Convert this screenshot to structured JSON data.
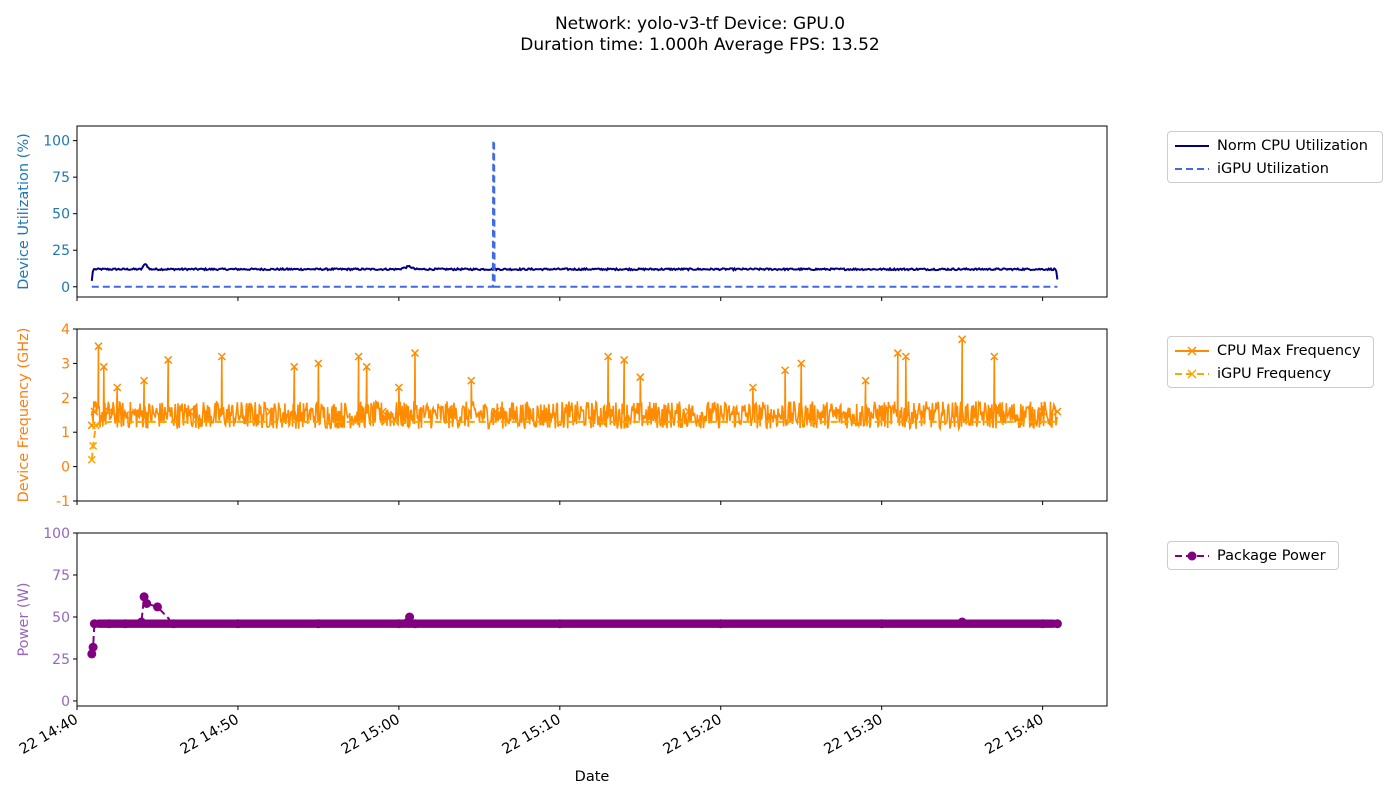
{
  "title_line1": "Network: yolo-v3-tf Device: GPU.0",
  "title_line2": "Duration time: 1.000h Average FPS: 13.52",
  "colors": {
    "cpu_util": "#000080",
    "igpu_util": "#4169e1",
    "cpu_freq": "#ff8c00",
    "igpu_freq": "#ffa500",
    "power": "#800080",
    "label_util": "#1f77b4",
    "label_freq": "#ff7f0e",
    "label_power": "#9467bd"
  },
  "legend_util": [
    "Norm CPU Utilization",
    "iGPU Utilization"
  ],
  "legend_freq": [
    "CPU Max Frequency",
    "iGPU Frequency"
  ],
  "legend_power": [
    "Package Power"
  ],
  "chart_data": [
    {
      "type": "line",
      "ylabel": "Device Utilization (%)",
      "ylim": [
        -7,
        110
      ],
      "yticks": [
        0,
        25,
        50,
        75,
        100
      ],
      "xlim": [
        "14:40",
        "15:44"
      ],
      "series": [
        {
          "name": "Norm CPU Utilization",
          "x": [
            "14:40:55",
            "14:41:00",
            "14:42:00",
            "14:43:00",
            "14:44:00",
            "14:44:15",
            "14:44:30",
            "14:45:00",
            "14:46:00",
            "14:50:00",
            "14:55:00",
            "15:00:00",
            "15:00:40",
            "15:01:00",
            "15:05:00",
            "15:05:50",
            "15:06:00",
            "15:10:00",
            "15:20:00",
            "15:30:00",
            "15:40:00",
            "15:40:50",
            "15:40:55"
          ],
          "values": [
            4,
            12,
            12,
            12,
            12,
            16,
            12,
            12,
            12,
            12,
            12,
            12,
            14,
            12,
            12,
            12,
            12,
            12,
            12,
            12,
            12,
            12,
            5
          ]
        },
        {
          "name": "iGPU Utilization",
          "x": [
            "14:40:55",
            "15:05:50",
            "15:05:52",
            "15:05:55",
            "15:05:57",
            "15:40:55"
          ],
          "values": [
            0,
            0,
            100,
            100,
            0,
            0
          ]
        }
      ]
    },
    {
      "type": "line",
      "ylabel": "Device Frequency (GHz)",
      "ylim": [
        -1,
        4
      ],
      "yticks": [
        -1,
        0,
        1,
        2,
        3,
        4
      ],
      "xlim": [
        "14:40",
        "15:44"
      ],
      "series": [
        {
          "name": "CPU Max Frequency",
          "x": [
            "14:40:55",
            "14:41:05",
            "14:41:20",
            "14:41:40",
            "14:42:00",
            "14:42:30",
            "14:43:00",
            "14:44:10",
            "14:45:40",
            "14:47:00",
            "14:49:00",
            "14:52:00",
            "14:53:30",
            "14:55:00",
            "14:57:30",
            "14:58:00",
            "14:59:00",
            "15:00:00",
            "15:01:00",
            "15:04:30",
            "15:06:00",
            "15:13:00",
            "15:14:00",
            "15:15:00",
            "15:18:00",
            "15:22:00",
            "15:24:00",
            "15:25:00",
            "15:29:00",
            "15:31:00",
            "15:31:30",
            "15:35:00",
            "15:37:00",
            "15:40:00",
            "15:40:55"
          ],
          "values": [
            1.2,
            1.6,
            3.5,
            2.9,
            1.6,
            2.3,
            1.5,
            2.5,
            3.1,
            1.6,
            3.2,
            1.6,
            2.9,
            3.0,
            3.2,
            2.9,
            1.6,
            2.3,
            3.3,
            2.5,
            1.6,
            3.2,
            3.1,
            2.6,
            1.6,
            2.3,
            2.8,
            3.0,
            2.5,
            3.3,
            3.2,
            3.7,
            3.2,
            1.6,
            1.6
          ]
        },
        {
          "name": "iGPU Frequency",
          "x": [
            "14:40:55",
            "14:41:00",
            "14:41:10",
            "14:42:00",
            "14:50:00",
            "15:00:00",
            "15:10:00",
            "15:20:00",
            "15:30:00",
            "15:40:00",
            "15:40:55"
          ],
          "values": [
            0.2,
            0.6,
            1.2,
            1.3,
            1.3,
            1.3,
            1.3,
            1.3,
            1.3,
            1.3,
            1.3
          ]
        }
      ]
    },
    {
      "type": "line",
      "ylabel": "Power (W)",
      "ylim": [
        -3,
        100
      ],
      "yticks": [
        0,
        25,
        50,
        75,
        100
      ],
      "xlim": [
        "14:40",
        "15:44"
      ],
      "xlabel": "Date",
      "xticks": [
        "22 14:40",
        "22 14:50",
        "22 15:00",
        "22 15:10",
        "22 15:20",
        "22 15:30",
        "22 15:40"
      ],
      "series": [
        {
          "name": "Package Power",
          "x": [
            "14:40:55",
            "14:41:00",
            "14:41:05",
            "14:42:00",
            "14:43:00",
            "14:44:00",
            "14:44:10",
            "14:44:20",
            "14:45:00",
            "14:46:00",
            "14:50:00",
            "14:55:00",
            "15:00:00",
            "15:00:40",
            "15:01:00",
            "15:10:00",
            "15:20:00",
            "15:30:00",
            "15:35:00",
            "15:40:00",
            "15:40:55"
          ],
          "values": [
            28,
            32,
            46,
            46,
            46,
            47,
            62,
            58,
            56,
            46,
            46,
            46,
            46,
            50,
            46,
            46,
            46,
            46,
            47,
            46,
            46
          ]
        }
      ]
    }
  ]
}
